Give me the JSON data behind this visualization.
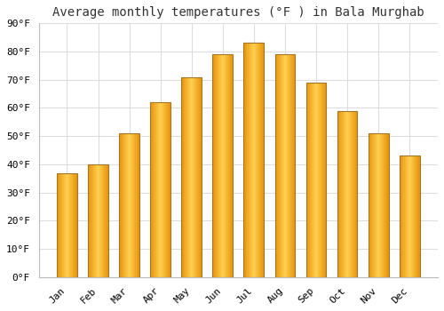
{
  "title": "Average monthly temperatures (°F ) in Bala Murghab",
  "months": [
    "Jan",
    "Feb",
    "Mar",
    "Apr",
    "May",
    "Jun",
    "Jul",
    "Aug",
    "Sep",
    "Oct",
    "Nov",
    "Dec"
  ],
  "values": [
    37,
    40,
    51,
    62,
    71,
    79,
    83,
    79,
    69,
    59,
    51,
    43
  ],
  "bar_color_left": "#E8920A",
  "bar_color_center": "#FFD050",
  "bar_color_right": "#E8920A",
  "bar_border_color": "#A07828",
  "ylim": [
    0,
    90
  ],
  "yticks": [
    0,
    10,
    20,
    30,
    40,
    50,
    60,
    70,
    80,
    90
  ],
  "ylabel_suffix": "°F",
  "background_color": "#FFFFFF",
  "grid_color": "#DDDDDD",
  "title_fontsize": 10,
  "tick_fontsize": 8,
  "bar_width": 0.65
}
